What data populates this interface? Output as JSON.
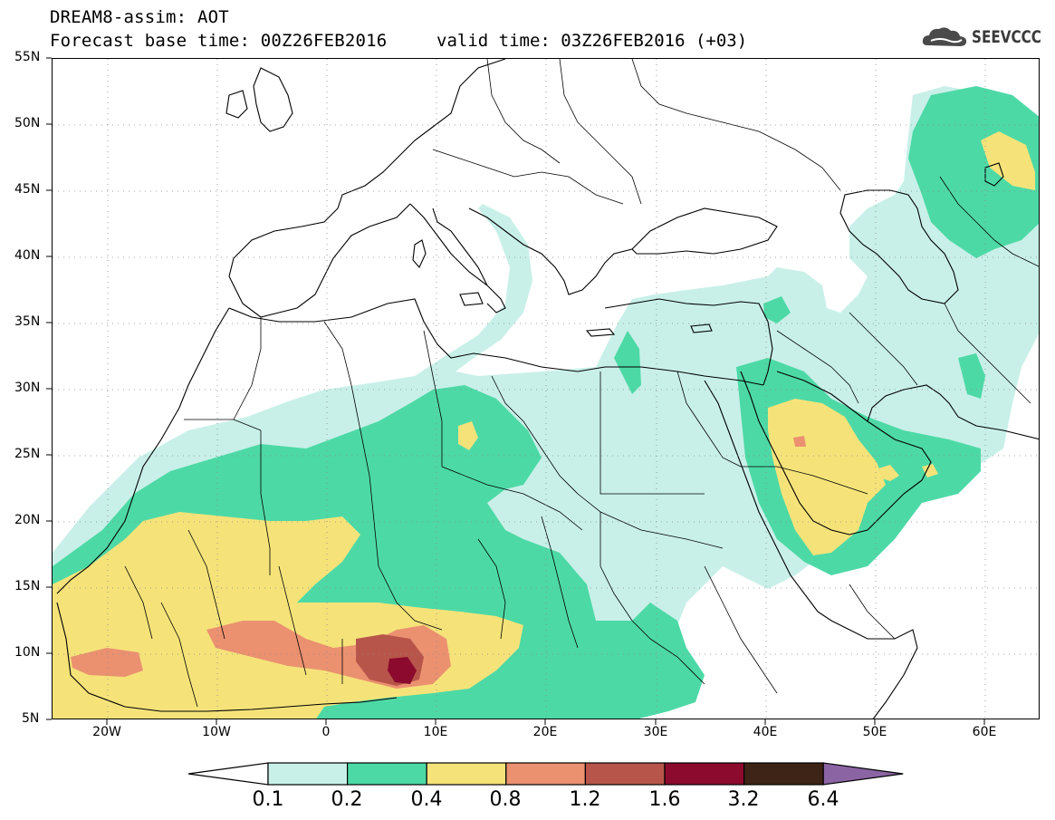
{
  "header": {
    "title_line1": "DREAM8-assim: AOT",
    "title_line2": "Forecast base time: 00Z26FEB2016",
    "valid_time": "valid time: 03Z26FEB2016 (+03)",
    "logo_text": "SEEVCCC",
    "logo_icon": "cloud-icon"
  },
  "map": {
    "lon_range": [
      -25,
      65
    ],
    "lat_range": [
      5,
      55
    ],
    "lat_labels": [
      "55N",
      "50N",
      "45N",
      "40N",
      "35N",
      "30N",
      "25N",
      "20N",
      "15N",
      "10N",
      "5N"
    ],
    "lon_labels": [
      "20W",
      "10W",
      "0",
      "10E",
      "20E",
      "30E",
      "40E",
      "50E",
      "60E"
    ],
    "grid": "dotted",
    "colors": {
      "c1": "#c8f0e8",
      "c2": "#4dd9a6",
      "c3": "#f5e37a",
      "c4": "#eb9170",
      "c5": "#b8554a",
      "c6": "#8b0a2e",
      "c7": "#3d2416",
      "c8": "#8b64a3"
    }
  },
  "colorbar": {
    "labels": [
      "0.1",
      "0.2",
      "0.4",
      "0.8",
      "1.2",
      "1.6",
      "3.2",
      "6.4"
    ],
    "colors": [
      "#c8f0e8",
      "#4dd9a6",
      "#f5e37a",
      "#eb9170",
      "#b8554a",
      "#8b0a2e",
      "#3d2416"
    ],
    "low_color": "#ffffff",
    "high_color": "#8b64a3"
  }
}
